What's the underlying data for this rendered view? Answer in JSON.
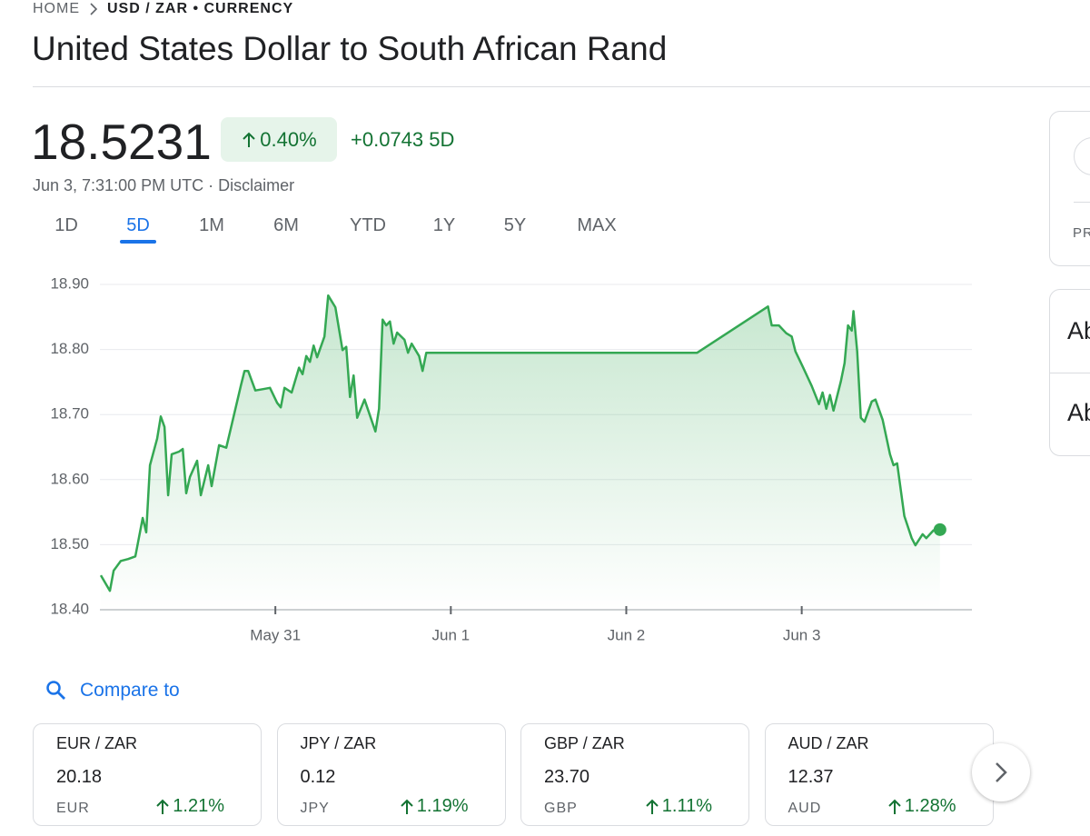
{
  "breadcrumb": {
    "home": "HOME",
    "current": "USD / ZAR • CURRENCY"
  },
  "title": "United States Dollar to South African Rand",
  "quote": {
    "price": "18.5231",
    "change_percent": "0.40%",
    "change": "+0.0743",
    "period": "5D",
    "timestamp": "Jun 3, 7:31:00 PM UTC",
    "separator": "·",
    "disclaimer": "Disclaimer"
  },
  "range_tabs": [
    "1D",
    "5D",
    "1M",
    "6M",
    "YTD",
    "1Y",
    "5Y",
    "MAX"
  ],
  "active_tab": 1,
  "chart_data": {
    "type": "line",
    "color": "#34a853",
    "grid": true,
    "xlim": [
      -1.0,
      3.97
    ],
    "ylim": [
      18.4,
      18.9
    ],
    "xticks": [
      {
        "value": 0,
        "label": "May 31"
      },
      {
        "value": 1,
        "label": "Jun 1"
      },
      {
        "value": 2,
        "label": "Jun 2"
      },
      {
        "value": 3,
        "label": "Jun 3"
      }
    ],
    "yticks": [
      {
        "value": 18.4,
        "label": "18.40"
      },
      {
        "value": 18.5,
        "label": "18.50"
      },
      {
        "value": 18.6,
        "label": "18.60"
      },
      {
        "value": 18.7,
        "label": "18.70"
      },
      {
        "value": 18.8,
        "label": "18.80"
      },
      {
        "value": 18.9,
        "label": "18.90"
      }
    ],
    "x": [
      -0.995,
      -0.943,
      -0.922,
      -0.881,
      -0.839,
      -0.798,
      -0.756,
      -0.736,
      -0.715,
      -0.674,
      -0.653,
      -0.632,
      -0.611,
      -0.591,
      -0.549,
      -0.528,
      -0.508,
      -0.487,
      -0.446,
      -0.425,
      -0.383,
      -0.363,
      -0.321,
      -0.28,
      -0.238,
      -0.197,
      -0.176,
      -0.155,
      -0.114,
      -0.073,
      -0.031,
      0.01,
      0.031,
      0.052,
      0.093,
      0.135,
      0.155,
      0.176,
      0.197,
      0.218,
      0.238,
      0.28,
      0.301,
      0.342,
      0.383,
      0.404,
      0.425,
      0.446,
      0.466,
      0.508,
      0.57,
      0.591,
      0.611,
      0.632,
      0.653,
      0.674,
      0.694,
      0.736,
      0.756,
      0.777,
      0.819,
      0.839,
      0.86,
      2.404,
      2.808,
      2.829,
      2.87,
      2.912,
      2.943,
      2.964,
      3.005,
      3.057,
      3.098,
      3.119,
      3.14,
      3.161,
      3.181,
      3.223,
      3.244,
      3.264,
      3.285,
      3.295,
      3.316,
      3.337,
      3.358,
      3.399,
      3.42,
      3.461,
      3.503,
      3.523,
      3.544,
      3.585,
      3.627,
      3.648,
      3.689,
      3.71,
      3.751,
      3.788
    ],
    "values": [
      18.453,
      18.429,
      18.46,
      18.475,
      18.478,
      18.482,
      18.541,
      18.519,
      18.622,
      18.663,
      18.697,
      18.681,
      18.576,
      18.639,
      18.643,
      18.647,
      18.579,
      18.604,
      18.629,
      18.576,
      18.622,
      18.59,
      18.653,
      18.649,
      18.697,
      18.744,
      18.767,
      18.767,
      18.737,
      18.739,
      18.741,
      18.718,
      18.711,
      18.741,
      18.734,
      18.772,
      18.762,
      18.79,
      18.781,
      18.806,
      18.788,
      18.82,
      18.883,
      18.865,
      18.799,
      18.804,
      18.727,
      18.76,
      18.695,
      18.723,
      18.674,
      18.709,
      18.846,
      18.837,
      18.843,
      18.809,
      18.826,
      18.815,
      18.795,
      18.809,
      18.79,
      18.767,
      18.795,
      18.795,
      18.866,
      18.837,
      18.837,
      18.825,
      18.82,
      18.797,
      18.774,
      18.744,
      18.716,
      18.734,
      18.709,
      18.73,
      18.706,
      18.751,
      18.779,
      18.837,
      18.829,
      18.859,
      18.797,
      18.695,
      18.689,
      18.72,
      18.723,
      18.692,
      18.639,
      18.622,
      18.625,
      18.544,
      18.51,
      18.499,
      18.516,
      18.51,
      18.522,
      18.5231
    ]
  },
  "compare": {
    "label": "Compare to",
    "cards": [
      {
        "pair": "EUR / ZAR",
        "price": "20.18",
        "currency": "EUR",
        "change": "1.21%"
      },
      {
        "pair": "JPY / ZAR",
        "price": "0.12",
        "currency": "JPY",
        "change": "1.19%"
      },
      {
        "pair": "GBP / ZAR",
        "price": "23.70",
        "currency": "GBP",
        "change": "1.11%"
      },
      {
        "pair": "AUD / ZAR",
        "price": "12.37",
        "currency": "AUD",
        "change": "1.28%"
      }
    ]
  },
  "side_panel": {
    "top_label": "PR",
    "rows": [
      "Ab",
      "Ab"
    ]
  }
}
